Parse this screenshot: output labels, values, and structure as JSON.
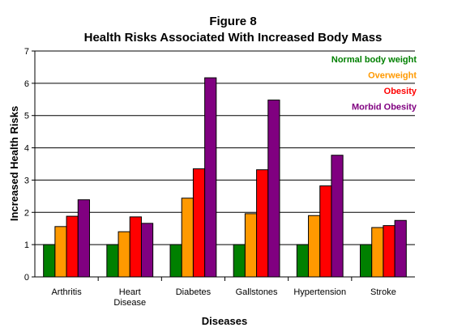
{
  "chart_data": {
    "type": "bar",
    "title": "Figure 8",
    "subtitle": "Health Risks Associated With Increased Body Mass",
    "xlabel": "Diseases",
    "ylabel": "Increased Health Risks",
    "ylim": [
      0,
      7
    ],
    "yticks": [
      "0",
      "1",
      "2",
      "3",
      "4",
      "5",
      "6",
      "7"
    ],
    "grid": true,
    "legend_position": "top-right",
    "categories": [
      [
        "Arthritis"
      ],
      [
        "Heart",
        "Disease"
      ],
      [
        "Diabetes"
      ],
      [
        "Gallstones"
      ],
      [
        "Hypertension"
      ],
      [
        "Stroke"
      ]
    ],
    "series": [
      {
        "name": "Normal body weight",
        "color": "#008000",
        "values": [
          1,
          1,
          1,
          1,
          1,
          1
        ]
      },
      {
        "name": "Overweight",
        "color": "#ff9900",
        "values": [
          1.56,
          1.4,
          2.44,
          1.96,
          1.9,
          1.53
        ]
      },
      {
        "name": "Obesity",
        "color": "#ff0000",
        "values": [
          1.88,
          1.86,
          3.35,
          3.32,
          2.82,
          1.59
        ]
      },
      {
        "name": "Morbid Obesity",
        "color": "#800080",
        "values": [
          2.39,
          1.66,
          6.17,
          5.48,
          3.77,
          1.75
        ]
      }
    ]
  }
}
